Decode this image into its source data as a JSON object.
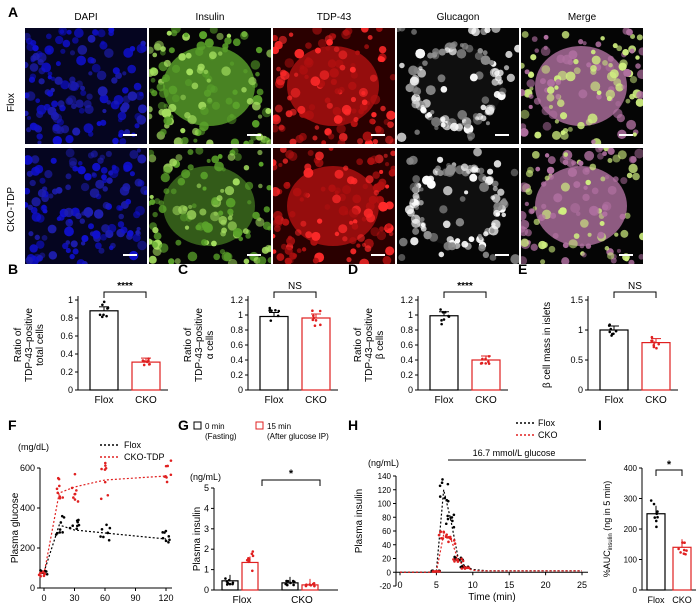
{
  "panelA": {
    "letter": "A",
    "columns": [
      "DAPI",
      "Insulin",
      "TDP-43",
      "Glucagon",
      "Merge"
    ],
    "rows": [
      "Flox",
      "CKO-TDP"
    ]
  },
  "bar_panels": [
    {
      "letter": "B",
      "ylabel": [
        "Ratio of",
        "TDP-43–positive",
        "total cells"
      ],
      "yticks": [
        "0",
        "0.2",
        "0.4",
        "0.6",
        "0.8",
        "1"
      ],
      "ymax": 1.0,
      "sig": "****",
      "categories": [
        "Flox",
        "CKO"
      ],
      "values": [
        0.88,
        0.31
      ]
    },
    {
      "letter": "C",
      "ylabel": [
        "Ratio of",
        "TDP-43–positive",
        "α cells"
      ],
      "yticks": [
        "0",
        "0.2",
        "0.4",
        "0.6",
        "0.8",
        "1",
        "1.2"
      ],
      "ymax": 1.2,
      "sig": "NS",
      "categories": [
        "Flox",
        "CKO"
      ],
      "values": [
        0.98,
        0.96
      ]
    },
    {
      "letter": "D",
      "ylabel": [
        "Ratio of",
        "TDP-43–positive",
        "β cells"
      ],
      "yticks": [
        "0",
        "0.2",
        "0.4",
        "0.6",
        "0.8",
        "1",
        "1.2"
      ],
      "ymax": 1.2,
      "sig": "****",
      "categories": [
        "Flox",
        "CKO"
      ],
      "values": [
        0.99,
        0.4
      ]
    },
    {
      "letter": "E",
      "ylabel": [
        "β cell mass in islets"
      ],
      "yticks": [
        "0",
        "0.5",
        "1",
        "1.5"
      ],
      "ymax": 1.5,
      "sig": "NS",
      "categories": [
        "Flox",
        "CKO"
      ],
      "values": [
        1.0,
        0.79
      ]
    }
  ],
  "panelF": {
    "letter": "F",
    "unit": "(mg/dL)",
    "ylabel": "Plasma glucose",
    "xticks": [
      "0",
      "30",
      "60",
      "90",
      "120"
    ],
    "yticks": [
      "0",
      "200",
      "400",
      "600"
    ],
    "legend": [
      "Flox",
      "CKO-TDP"
    ],
    "x": [
      0,
      15,
      30,
      60,
      120
    ],
    "series": [
      {
        "name": "Flox",
        "values": [
          80,
          315,
          290,
          275,
          245
        ]
      },
      {
        "name": "CKO-TDP",
        "values": [
          70,
          475,
          505,
          540,
          560
        ]
      }
    ]
  },
  "panelG": {
    "letter": "G",
    "unit": "(ng/mL)",
    "ylabel": "Plasma insulin",
    "legend": [
      "0 min\n(Fasting)",
      "15 min\n(After glucose IP)"
    ],
    "legend0a": "0 min",
    "legend0b": "(Fasting)",
    "legend1a": "15 min",
    "legend1b": "(After glucose IP)",
    "yticks": [
      "0",
      "1",
      "2",
      "3",
      "4",
      "5"
    ],
    "sig": "*",
    "categories": [
      "Flox",
      "CKO"
    ],
    "series": [
      {
        "name": "0 min",
        "values": [
          0.45,
          0.35
        ]
      },
      {
        "name": "15 min",
        "values": [
          1.35,
          0.25
        ]
      }
    ]
  },
  "panelH": {
    "letter": "H",
    "unit": "(ng/mL)",
    "ylabel": "Plasma insulin",
    "xlabel": "Time (min)",
    "glucose_label": "16.7 mmol/L glucose",
    "yticks": [
      "-20",
      "0",
      "20",
      "40",
      "60",
      "80",
      "100",
      "120",
      "140"
    ],
    "xticks": [
      "0",
      "5",
      "10",
      "15",
      "20",
      "25"
    ],
    "legend": [
      "Flox",
      "CKO"
    ],
    "x": [
      0,
      1,
      2,
      3,
      4,
      5,
      6,
      7,
      8,
      9,
      10,
      11,
      12,
      13,
      14,
      15,
      16,
      17,
      18,
      19,
      20,
      21,
      22,
      23,
      24,
      25
    ],
    "series": [
      {
        "name": "Flox",
        "values": [
          0,
          0,
          0,
          0,
          0,
          2,
          120,
          75,
          20,
          8,
          4,
          3,
          2,
          2,
          2,
          2,
          2,
          2,
          2,
          2,
          2,
          2,
          2,
          2,
          2,
          2
        ]
      },
      {
        "name": "CKO",
        "values": [
          0,
          0,
          0,
          0,
          0,
          1,
          55,
          48,
          18,
          6,
          3,
          2,
          2,
          2,
          2,
          2,
          2,
          2,
          2,
          2,
          2,
          2,
          2,
          2,
          2,
          2
        ]
      }
    ]
  },
  "panelI": {
    "letter": "I",
    "ylabel": "%AUC",
    "ylabel_sub": "insulin",
    "ylabel_tail": "(ng in 5 min)",
    "yticks": [
      "0",
      "100",
      "200",
      "300",
      "400"
    ],
    "sig": "*",
    "categories": [
      "Flox",
      "CKO"
    ],
    "values": [
      250,
      140
    ]
  }
}
